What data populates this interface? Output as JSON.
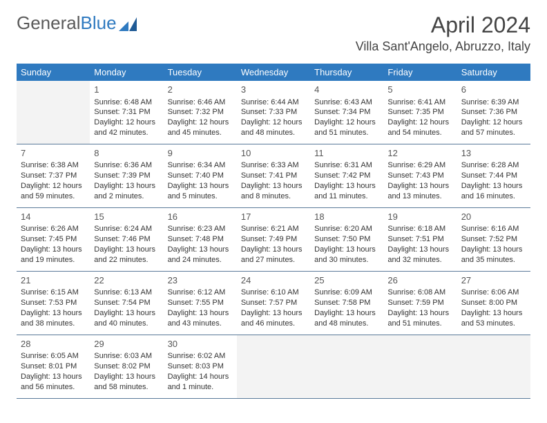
{
  "logo": {
    "text1": "General",
    "text2": "Blue"
  },
  "title": "April 2024",
  "location": "Villa Sant'Angelo, Abruzzo, Italy",
  "colors": {
    "header_bg": "#2f7ac0",
    "header_fg": "#ffffff",
    "row_border": "#5a7a99",
    "empty_bg": "#f3f3f3",
    "text": "#333333",
    "logo_gray": "#5a5a5a",
    "logo_blue": "#2f7ac0"
  },
  "weekdays": [
    "Sunday",
    "Monday",
    "Tuesday",
    "Wednesday",
    "Thursday",
    "Friday",
    "Saturday"
  ],
  "weeks": [
    [
      null,
      {
        "n": "1",
        "sr": "6:48 AM",
        "ss": "7:31 PM",
        "dl": "12 hours and 42 minutes."
      },
      {
        "n": "2",
        "sr": "6:46 AM",
        "ss": "7:32 PM",
        "dl": "12 hours and 45 minutes."
      },
      {
        "n": "3",
        "sr": "6:44 AM",
        "ss": "7:33 PM",
        "dl": "12 hours and 48 minutes."
      },
      {
        "n": "4",
        "sr": "6:43 AM",
        "ss": "7:34 PM",
        "dl": "12 hours and 51 minutes."
      },
      {
        "n": "5",
        "sr": "6:41 AM",
        "ss": "7:35 PM",
        "dl": "12 hours and 54 minutes."
      },
      {
        "n": "6",
        "sr": "6:39 AM",
        "ss": "7:36 PM",
        "dl": "12 hours and 57 minutes."
      }
    ],
    [
      {
        "n": "7",
        "sr": "6:38 AM",
        "ss": "7:37 PM",
        "dl": "12 hours and 59 minutes."
      },
      {
        "n": "8",
        "sr": "6:36 AM",
        "ss": "7:39 PM",
        "dl": "13 hours and 2 minutes."
      },
      {
        "n": "9",
        "sr": "6:34 AM",
        "ss": "7:40 PM",
        "dl": "13 hours and 5 minutes."
      },
      {
        "n": "10",
        "sr": "6:33 AM",
        "ss": "7:41 PM",
        "dl": "13 hours and 8 minutes."
      },
      {
        "n": "11",
        "sr": "6:31 AM",
        "ss": "7:42 PM",
        "dl": "13 hours and 11 minutes."
      },
      {
        "n": "12",
        "sr": "6:29 AM",
        "ss": "7:43 PM",
        "dl": "13 hours and 13 minutes."
      },
      {
        "n": "13",
        "sr": "6:28 AM",
        "ss": "7:44 PM",
        "dl": "13 hours and 16 minutes."
      }
    ],
    [
      {
        "n": "14",
        "sr": "6:26 AM",
        "ss": "7:45 PM",
        "dl": "13 hours and 19 minutes."
      },
      {
        "n": "15",
        "sr": "6:24 AM",
        "ss": "7:46 PM",
        "dl": "13 hours and 22 minutes."
      },
      {
        "n": "16",
        "sr": "6:23 AM",
        "ss": "7:48 PM",
        "dl": "13 hours and 24 minutes."
      },
      {
        "n": "17",
        "sr": "6:21 AM",
        "ss": "7:49 PM",
        "dl": "13 hours and 27 minutes."
      },
      {
        "n": "18",
        "sr": "6:20 AM",
        "ss": "7:50 PM",
        "dl": "13 hours and 30 minutes."
      },
      {
        "n": "19",
        "sr": "6:18 AM",
        "ss": "7:51 PM",
        "dl": "13 hours and 32 minutes."
      },
      {
        "n": "20",
        "sr": "6:16 AM",
        "ss": "7:52 PM",
        "dl": "13 hours and 35 minutes."
      }
    ],
    [
      {
        "n": "21",
        "sr": "6:15 AM",
        "ss": "7:53 PM",
        "dl": "13 hours and 38 minutes."
      },
      {
        "n": "22",
        "sr": "6:13 AM",
        "ss": "7:54 PM",
        "dl": "13 hours and 40 minutes."
      },
      {
        "n": "23",
        "sr": "6:12 AM",
        "ss": "7:55 PM",
        "dl": "13 hours and 43 minutes."
      },
      {
        "n": "24",
        "sr": "6:10 AM",
        "ss": "7:57 PM",
        "dl": "13 hours and 46 minutes."
      },
      {
        "n": "25",
        "sr": "6:09 AM",
        "ss": "7:58 PM",
        "dl": "13 hours and 48 minutes."
      },
      {
        "n": "26",
        "sr": "6:08 AM",
        "ss": "7:59 PM",
        "dl": "13 hours and 51 minutes."
      },
      {
        "n": "27",
        "sr": "6:06 AM",
        "ss": "8:00 PM",
        "dl": "13 hours and 53 minutes."
      }
    ],
    [
      {
        "n": "28",
        "sr": "6:05 AM",
        "ss": "8:01 PM",
        "dl": "13 hours and 56 minutes."
      },
      {
        "n": "29",
        "sr": "6:03 AM",
        "ss": "8:02 PM",
        "dl": "13 hours and 58 minutes."
      },
      {
        "n": "30",
        "sr": "6:02 AM",
        "ss": "8:03 PM",
        "dl": "14 hours and 1 minute."
      },
      null,
      null,
      null,
      null
    ]
  ],
  "labels": {
    "sunrise": "Sunrise: ",
    "sunset": "Sunset: ",
    "daylight": "Daylight: "
  }
}
